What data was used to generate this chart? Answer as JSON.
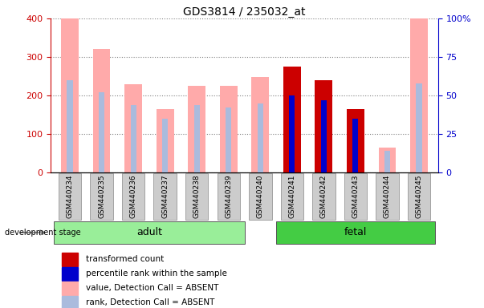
{
  "title": "GDS3814 / 235032_at",
  "samples": [
    "GSM440234",
    "GSM440235",
    "GSM440236",
    "GSM440237",
    "GSM440238",
    "GSM440239",
    "GSM440240",
    "GSM440241",
    "GSM440242",
    "GSM440243",
    "GSM440244",
    "GSM440245"
  ],
  "value": [
    400,
    320,
    230,
    165,
    225,
    225,
    248,
    275,
    240,
    165,
    65,
    400
  ],
  "rank_pct": [
    60,
    52,
    44,
    35,
    44,
    42,
    45,
    50,
    47,
    35,
    14,
    58
  ],
  "detection_call": [
    "A",
    "A",
    "A",
    "A",
    "A",
    "A",
    "A",
    "P",
    "P",
    "P",
    "A",
    "A"
  ],
  "ylim_left": [
    0,
    400
  ],
  "ylim_right": [
    0,
    100
  ],
  "yticks_left": [
    0,
    100,
    200,
    300,
    400
  ],
  "yticks_right": [
    0,
    25,
    50,
    75,
    100
  ],
  "color_absent_value": "#ffaaaa",
  "color_absent_rank": "#aabbdd",
  "color_present_value": "#cc0000",
  "color_present_rank": "#0000cc",
  "bar_width": 0.55,
  "rank_bar_width": 0.18,
  "legend_items": [
    {
      "label": "transformed count",
      "color": "#cc0000"
    },
    {
      "label": "percentile rank within the sample",
      "color": "#0000cc"
    },
    {
      "label": "value, Detection Call = ABSENT",
      "color": "#ffaaaa"
    },
    {
      "label": "rank, Detection Call = ABSENT",
      "color": "#aabbdd"
    }
  ],
  "development_stage_label": "development stage",
  "adult_color": "#99ee99",
  "fetal_color": "#44cc44",
  "bg_color": "#ffffff",
  "left_axis_color": "#cc0000",
  "right_axis_color": "#0000cc"
}
